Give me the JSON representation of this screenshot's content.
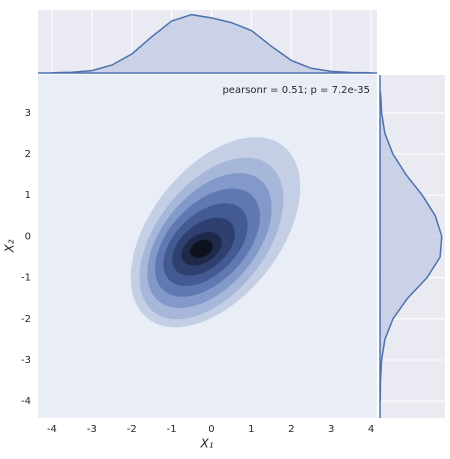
{
  "chart_data": {
    "type": "kde-joint",
    "annotation": "pearsonr = 0.51; p = 7.2e-35",
    "xlabel": "X₁",
    "ylabel": "X₂",
    "xlim": [
      -4.35,
      4.15
    ],
    "ylim": [
      -4.41,
      3.92
    ],
    "xticks": [
      -4,
      -3,
      -2,
      -1,
      0,
      1,
      2,
      3,
      4
    ],
    "yticks": [
      -4,
      -3,
      -2,
      -1,
      0,
      1,
      2,
      3
    ],
    "grid": true,
    "background": "#e9eef6",
    "contours": [
      {
        "center": [
          0.1,
          0.1
        ],
        "semi_axes": [
          2.7,
          1.6
        ],
        "angle": 50,
        "color": "#c4cfe6"
      },
      {
        "center": [
          0.0,
          -0.05
        ],
        "semi_axes": [
          2.3,
          1.35
        ],
        "angle": 50,
        "color": "#a6b7da"
      },
      {
        "center": [
          -0.05,
          -0.1
        ],
        "semi_axes": [
          1.95,
          1.15
        ],
        "angle": 48,
        "color": "#8399c9"
      },
      {
        "center": [
          -0.1,
          -0.15
        ],
        "semi_axes": [
          1.6,
          0.95
        ],
        "angle": 45,
        "color": "#6178b3"
      },
      {
        "center": [
          -0.15,
          -0.2
        ],
        "semi_axes": [
          1.25,
          0.75
        ],
        "angle": 42,
        "color": "#445a92"
      },
      {
        "center": [
          -0.2,
          -0.25
        ],
        "semi_axes": [
          0.9,
          0.55
        ],
        "angle": 38,
        "color": "#2f4070"
      },
      {
        "center": [
          -0.25,
          -0.3
        ],
        "semi_axes": [
          0.55,
          0.35
        ],
        "angle": 30,
        "color": "#1f2a4b"
      },
      {
        "center": [
          -0.25,
          -0.3
        ],
        "semi_axes": [
          0.3,
          0.2
        ],
        "angle": 25,
        "color": "#0e1220"
      }
    ],
    "marginal_color": "#4c72b0",
    "marginal_fill": "#c3cbe3",
    "density_lim": [
      0,
      0.4
    ],
    "top_marginal": {
      "x": [
        -4,
        -3.5,
        -3,
        -2.5,
        -2,
        -1.5,
        -1,
        -0.5,
        0,
        0.5,
        1,
        1.5,
        2,
        2.5,
        3,
        3.5,
        4
      ],
      "values": [
        0.002,
        0.005,
        0.015,
        0.05,
        0.12,
        0.23,
        0.33,
        0.37,
        0.35,
        0.32,
        0.27,
        0.17,
        0.08,
        0.03,
        0.01,
        0.003,
        0.001
      ]
    },
    "right_marginal": {
      "y": [
        -4,
        -3.5,
        -3,
        -2.5,
        -2,
        -1.5,
        -1,
        -0.5,
        0,
        0.5,
        1,
        1.5,
        2,
        2.5,
        3,
        3.5
      ],
      "values": [
        0.001,
        0.003,
        0.01,
        0.03,
        0.08,
        0.17,
        0.29,
        0.37,
        0.38,
        0.34,
        0.26,
        0.16,
        0.08,
        0.03,
        0.01,
        0.003
      ]
    }
  }
}
